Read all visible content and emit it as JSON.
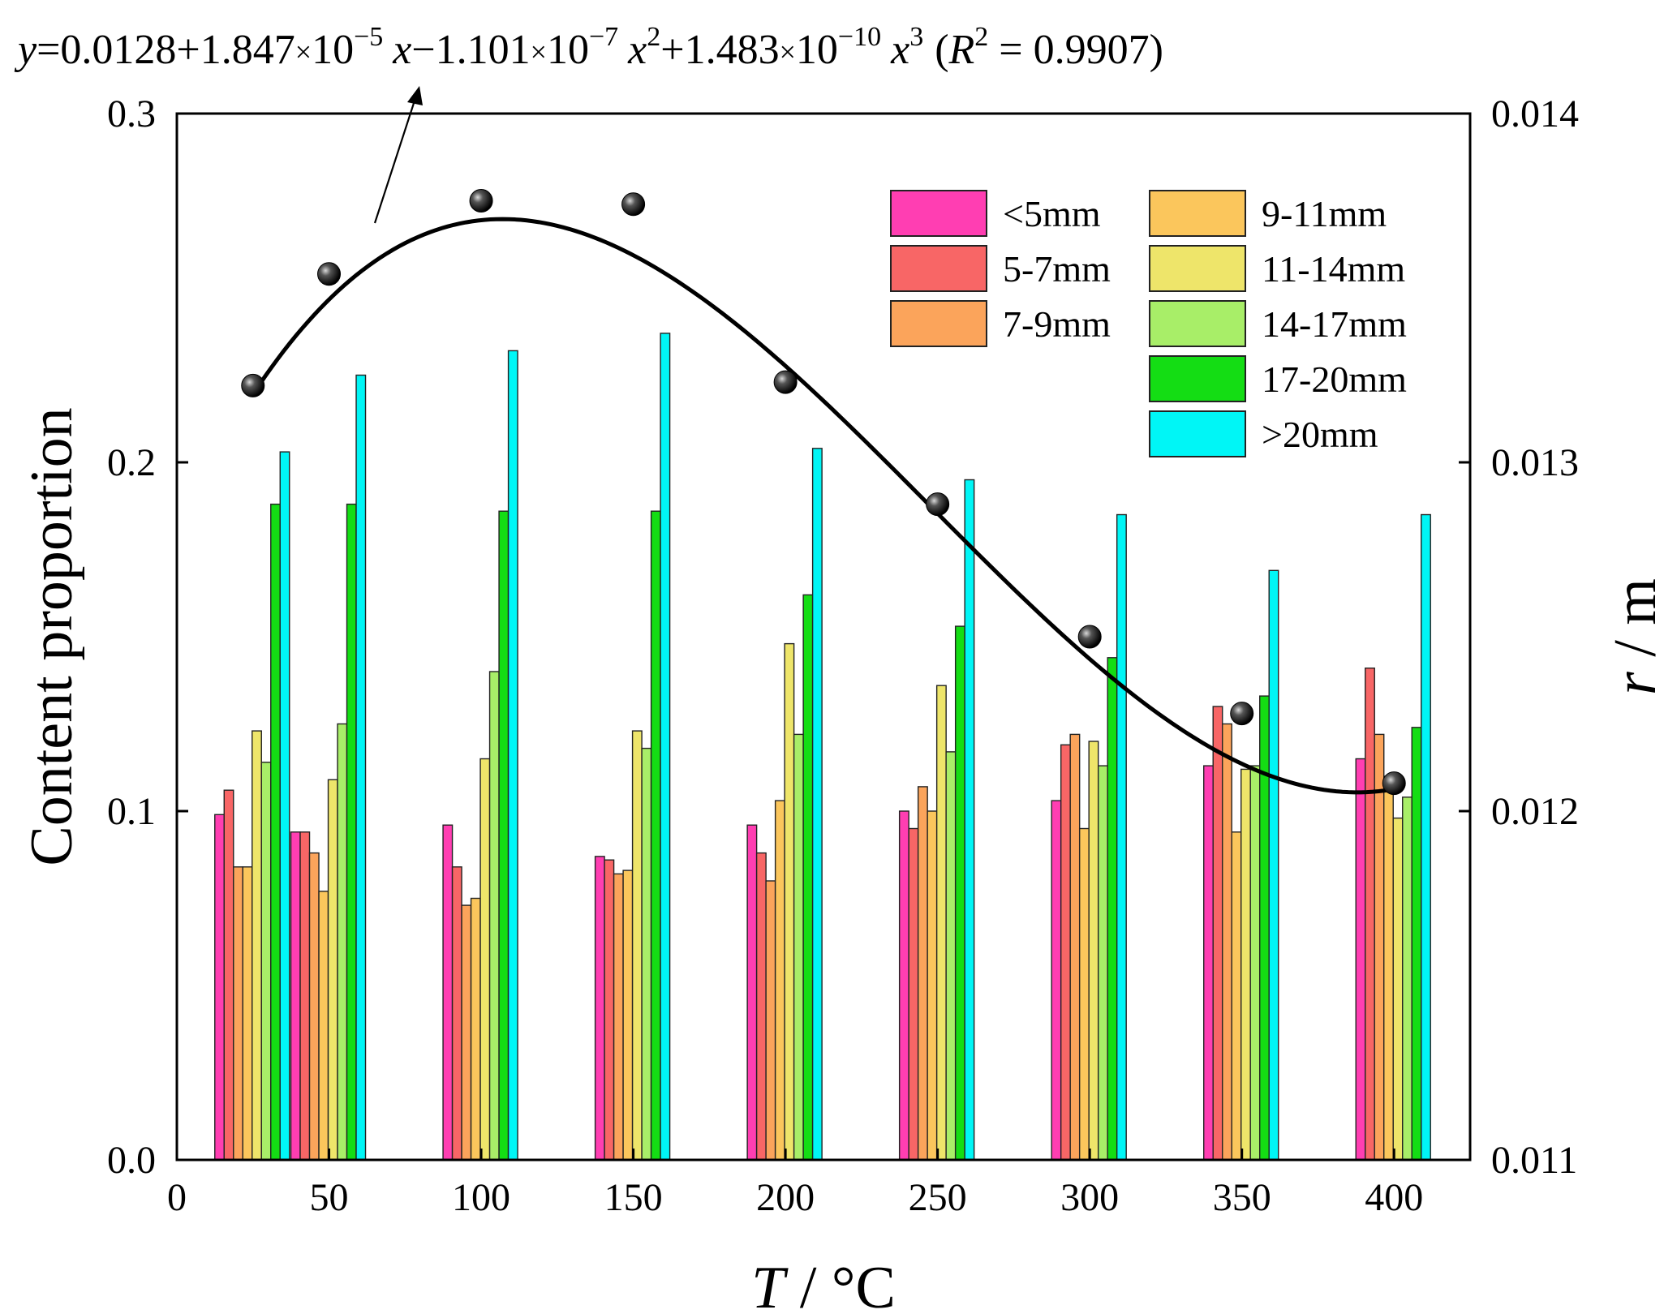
{
  "colors": {
    "lt5": "#ff3eb2",
    "c5_7": "#f86666",
    "c7_9": "#fba45b",
    "c9_11": "#fbc65c",
    "c11_14": "#eee56a",
    "c14_17": "#a8ee68",
    "c17_20": "#14dd14",
    "gt20": "#00f6f6"
  },
  "chart_data": {
    "type": "bar",
    "title": "",
    "xlabel_italic": "T",
    "xlabel_rest": " / °C",
    "ylabel": "Content proportion",
    "y2label_italic": "r",
    "y2label_rest": " / m",
    "xlim": [
      0,
      425
    ],
    "ylim": [
      0,
      0.3
    ],
    "y2lim": [
      0.011,
      0.014
    ],
    "x_ticks": [
      "0",
      "50",
      "100",
      "150",
      "200",
      "250",
      "300",
      "350",
      "400"
    ],
    "y_ticks": [
      "0.0",
      "0.1",
      "0.2",
      "0.3"
    ],
    "y2_ticks": [
      "0.011",
      "0.012",
      "0.013",
      "0.014"
    ],
    "categories": [
      25,
      50,
      100,
      150,
      200,
      250,
      300,
      350,
      400
    ],
    "series": [
      {
        "name": "<5mm",
        "values": [
          0.099,
          0.094,
          0.096,
          0.087,
          0.096,
          0.1,
          0.103,
          0.113,
          0.115
        ]
      },
      {
        "name": "5-7mm",
        "values": [
          0.106,
          0.094,
          0.084,
          0.086,
          0.088,
          0.095,
          0.119,
          0.13,
          0.141
        ]
      },
      {
        "name": "7-9mm",
        "values": [
          0.084,
          0.088,
          0.073,
          0.082,
          0.08,
          0.107,
          0.122,
          0.125,
          0.122
        ]
      },
      {
        "name": "9-11mm",
        "values": [
          0.084,
          0.077,
          0.075,
          0.083,
          0.103,
          0.1,
          0.095,
          0.094,
          0.11
        ]
      },
      {
        "name": "11-14mm",
        "values": [
          0.123,
          0.109,
          0.115,
          0.123,
          0.148,
          0.136,
          0.12,
          0.112,
          0.098
        ]
      },
      {
        "name": "14-17mm",
        "values": [
          0.114,
          0.125,
          0.14,
          0.118,
          0.122,
          0.117,
          0.113,
          0.113,
          0.104
        ]
      },
      {
        "name": "17-20mm",
        "values": [
          0.188,
          0.188,
          0.186,
          0.186,
          0.162,
          0.153,
          0.144,
          0.133,
          0.124
        ]
      },
      {
        "name": ">20mm",
        "values": [
          0.203,
          0.225,
          0.232,
          0.237,
          0.204,
          0.195,
          0.185,
          0.169,
          0.185
        ]
      }
    ],
    "r_points": {
      "name": "r",
      "x": [
        25,
        50,
        100,
        150,
        200,
        250,
        300,
        350,
        400
      ],
      "y": [
        0.01322,
        0.01354,
        0.01375,
        0.01374,
        0.01323,
        0.01288,
        0.0125,
        0.01228,
        0.01208
      ]
    },
    "fit": {
      "coefficients": [
        0.0128,
        1.847e-05,
        -1.101e-07,
        1.483e-10
      ],
      "x_range": [
        25,
        400
      ]
    },
    "equation": {
      "y": "y",
      "lhs": "=0.0128+1.847",
      "times": "×",
      "ten": "10",
      "exp1": "−5",
      "x": "x",
      "minus": "−1.101",
      "exp2": "−7",
      "sq": "2",
      "plus": "+1.483",
      "exp3": "−10",
      "cube": "3",
      "r_open": "(",
      "R": "R",
      "r_rest": " = 0.9907)"
    }
  }
}
